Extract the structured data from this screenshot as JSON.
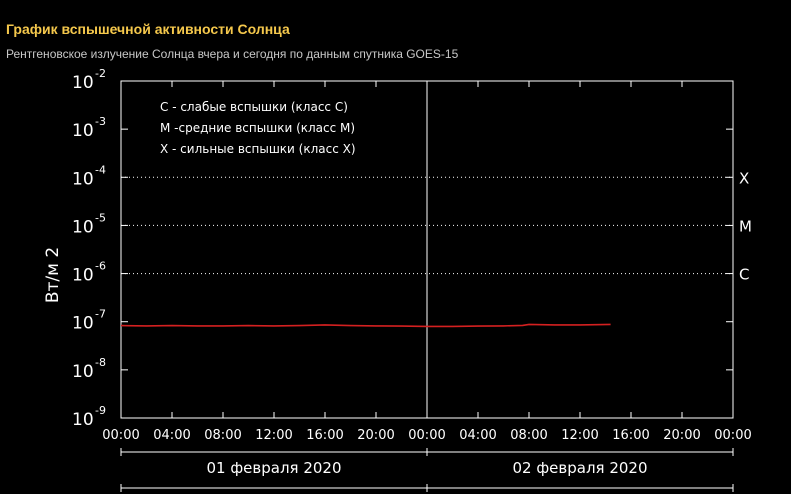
{
  "header": {
    "title": "График вспышечной активности Солнца",
    "subtitle": "Рентгеновское излучение Солнца вчера и сегодня по данным спутника GOES-15"
  },
  "colors": {
    "title": "#f5c84c",
    "series": "#d42020",
    "background": "#000000"
  },
  "chart_data": {
    "type": "line",
    "ylabel": "Вт/м 2",
    "yscale": "log",
    "ylim": [
      1e-09,
      0.01
    ],
    "y_ticks": [
      {
        "base": "10",
        "exp": "-2",
        "value": 0.01
      },
      {
        "base": "10",
        "exp": "-3",
        "value": 0.001
      },
      {
        "base": "10",
        "exp": "-4",
        "value": 0.0001
      },
      {
        "base": "10",
        "exp": "-5",
        "value": 1e-05
      },
      {
        "base": "10",
        "exp": "-6",
        "value": 1e-06
      },
      {
        "base": "10",
        "exp": "-7",
        "value": 1e-07
      },
      {
        "base": "10",
        "exp": "-8",
        "value": 1e-08
      },
      {
        "base": "10",
        "exp": "-9",
        "value": 1e-09
      }
    ],
    "xlim_hours": [
      0,
      48
    ],
    "x_ticks": [
      {
        "label": "00:00",
        "hour": 0
      },
      {
        "label": "04:00",
        "hour": 4
      },
      {
        "label": "08:00",
        "hour": 8
      },
      {
        "label": "12:00",
        "hour": 12
      },
      {
        "label": "16:00",
        "hour": 16
      },
      {
        "label": "20:00",
        "hour": 20
      },
      {
        "label": "00:00",
        "hour": 24
      },
      {
        "label": "04:00",
        "hour": 28
      },
      {
        "label": "08:00",
        "hour": 32
      },
      {
        "label": "12:00",
        "hour": 36
      },
      {
        "label": "16:00",
        "hour": 40
      },
      {
        "label": "20:00",
        "hour": 44
      },
      {
        "label": "00:00",
        "hour": 48
      }
    ],
    "days": [
      {
        "label": "01 февраля 2020",
        "start_hour": 0,
        "end_hour": 24
      },
      {
        "label": "02 февраля 2020",
        "start_hour": 24,
        "end_hour": 48
      }
    ],
    "day_divider_hour": 24,
    "class_thresholds": [
      {
        "label": "X",
        "value": 0.0001
      },
      {
        "label": "M",
        "value": 1e-05
      },
      {
        "label": "C",
        "value": 1e-06
      }
    ],
    "legend": [
      "C - слабые вспышки (класс C)",
      "M -средние вспышки (класс M)",
      "X - сильные вспышки (класс X)"
    ],
    "series": [
      {
        "hours": [
          0,
          2,
          4,
          6,
          8,
          10,
          12,
          14,
          16,
          18,
          20,
          22,
          24,
          26,
          28,
          30,
          31.5,
          32,
          34,
          36,
          38.4
        ],
        "values": [
          8.3e-08,
          8.2e-08,
          8.3e-08,
          8.2e-08,
          8.2e-08,
          8.3e-08,
          8.2e-08,
          8.3e-08,
          8.6e-08,
          8.3e-08,
          8.2e-08,
          8.1e-08,
          8e-08,
          8e-08,
          8.1e-08,
          8.2e-08,
          8.4e-08,
          8.8e-08,
          8.6e-08,
          8.6e-08,
          8.8e-08
        ]
      }
    ]
  }
}
